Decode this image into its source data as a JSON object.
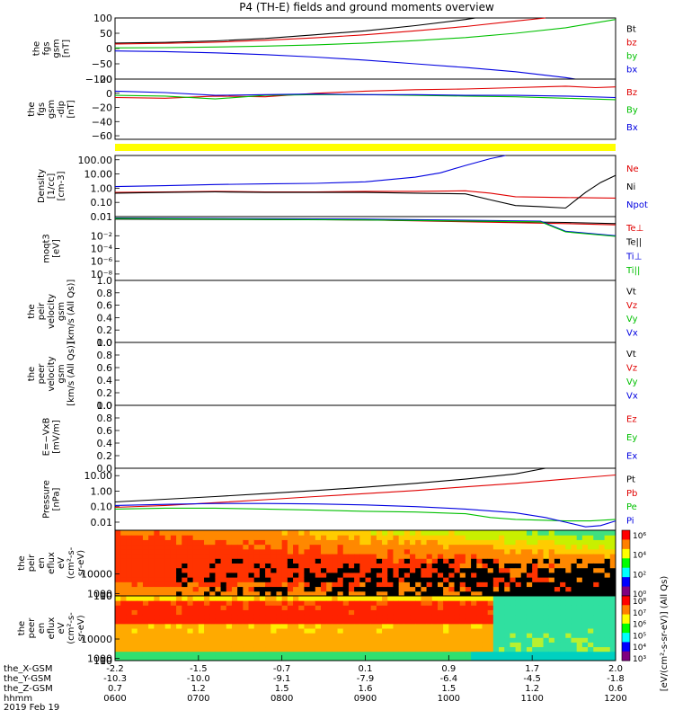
{
  "title": "P4 (TH-E) fields and ground moments overview",
  "colors": {
    "black": "#000000",
    "red": "#e00000",
    "green": "#00c000",
    "blue": "#0000e0",
    "yellow": "#ffff00"
  },
  "chart_data": [
    {
      "id": "bgsm",
      "type": "line",
      "ylabel": [
        "the",
        "fgs",
        "gsm",
        "[nT]"
      ],
      "ylim": [
        -100,
        100
      ],
      "yticks": [
        "100",
        "50",
        "0",
        "−50",
        "−100"
      ],
      "ytick_values": [
        100,
        50,
        0,
        -50,
        -100
      ],
      "legend": [
        "Bt",
        "bz",
        "by",
        "bx"
      ],
      "series": [
        {
          "name": "Bt",
          "color": "black",
          "x": [
            0.0,
            0.1,
            0.2,
            0.3,
            0.4,
            0.5,
            0.6,
            0.7,
            0.72
          ],
          "values": [
            18,
            20,
            25,
            33,
            45,
            58,
            75,
            95,
            100
          ]
        },
        {
          "name": "bz",
          "color": "red",
          "x": [
            0.0,
            0.1,
            0.2,
            0.3,
            0.4,
            0.5,
            0.6,
            0.7,
            0.8,
            0.86
          ],
          "values": [
            15,
            17,
            21,
            27,
            35,
            45,
            58,
            72,
            90,
            100
          ]
        },
        {
          "name": "by",
          "color": "green",
          "x": [
            0.0,
            0.1,
            0.2,
            0.3,
            0.4,
            0.5,
            0.6,
            0.7,
            0.8,
            0.9,
            1.0
          ],
          "values": [
            2,
            3,
            5,
            8,
            12,
            18,
            26,
            36,
            50,
            68,
            95
          ]
        },
        {
          "name": "bx",
          "color": "blue",
          "x": [
            0.0,
            0.1,
            0.2,
            0.3,
            0.4,
            0.5,
            0.6,
            0.7,
            0.8,
            0.9,
            0.92
          ],
          "values": [
            -8,
            -10,
            -14,
            -20,
            -28,
            -38,
            -50,
            -62,
            -76,
            -95,
            -100
          ]
        }
      ]
    },
    {
      "id": "bdsl",
      "type": "line",
      "ylabel": [
        "the",
        "fgs",
        "gsm",
        "-dip",
        "[nT]"
      ],
      "ylim": [
        -65,
        20
      ],
      "yticks": [
        "20",
        "0",
        "−20",
        "−40",
        "−60"
      ],
      "ytick_values": [
        20,
        0,
        -20,
        -40,
        -60
      ],
      "legend": [
        "Bz",
        "By",
        "Bx"
      ],
      "series": [
        {
          "name": "Bz",
          "color": "red",
          "x": [
            0.0,
            0.1,
            0.2,
            0.3,
            0.4,
            0.5,
            0.6,
            0.7,
            0.8,
            0.85,
            0.9,
            0.96,
            1.0
          ],
          "values": [
            -6,
            -7,
            -4,
            -5,
            0,
            3,
            5,
            6,
            8,
            9,
            10,
            8,
            9
          ]
        },
        {
          "name": "By",
          "color": "green",
          "x": [
            0.0,
            0.1,
            0.2,
            0.3,
            0.4,
            0.5,
            0.6,
            0.7,
            0.8,
            0.9,
            1.0
          ],
          "values": [
            -3,
            -4,
            -8,
            -3,
            -2,
            -2,
            -3,
            -4,
            -5,
            -7,
            -9
          ]
        },
        {
          "name": "Bx",
          "color": "blue",
          "x": [
            0.0,
            0.1,
            0.2,
            0.3,
            0.4,
            0.5,
            0.6,
            0.7,
            0.8,
            0.9,
            1.0
          ],
          "values": [
            3,
            1,
            -3,
            -2,
            -1,
            -2,
            -2,
            -3,
            -3,
            -4,
            -6
          ]
        }
      ]
    },
    {
      "id": "density",
      "type": "line",
      "scale": "log",
      "ylabel": [
        "Density",
        "[1/cc]",
        "[cm-3]"
      ],
      "ylim": [
        0.01,
        200
      ],
      "yticks": [
        "100.00",
        "10.00",
        "1.00",
        "0.10",
        "0.01"
      ],
      "ytick_values": [
        100,
        10,
        1,
        0.1,
        0.01
      ],
      "legend": [
        "Ne",
        "Ni",
        "Npot"
      ],
      "series": [
        {
          "name": "Ne",
          "color": "red",
          "x": [
            0.0,
            0.1,
            0.2,
            0.3,
            0.4,
            0.5,
            0.6,
            0.7,
            0.75,
            0.8,
            0.9,
            1.0
          ],
          "values": [
            0.5,
            0.55,
            0.6,
            0.55,
            0.55,
            0.6,
            0.6,
            0.65,
            0.45,
            0.25,
            0.22,
            0.2
          ]
        },
        {
          "name": "Ni",
          "color": "black",
          "x": [
            0.0,
            0.1,
            0.2,
            0.3,
            0.4,
            0.5,
            0.6,
            0.7,
            0.75,
            0.8,
            0.85,
            0.9,
            0.94,
            0.97,
            1.0
          ],
          "values": [
            0.45,
            0.5,
            0.55,
            0.5,
            0.5,
            0.5,
            0.45,
            0.4,
            0.15,
            0.06,
            0.05,
            0.04,
            0.5,
            2.5,
            8
          ]
        },
        {
          "name": "Npot",
          "color": "blue",
          "x": [
            0.0,
            0.1,
            0.2,
            0.3,
            0.4,
            0.5,
            0.6,
            0.65,
            0.7,
            0.75,
            0.78
          ],
          "values": [
            1.3,
            1.5,
            1.8,
            2.0,
            2.2,
            2.8,
            6,
            12,
            40,
            120,
            200
          ]
        }
      ]
    },
    {
      "id": "temp",
      "type": "line",
      "scale": "log",
      "ylabel": [
        "moqt3",
        "[eV]"
      ],
      "ylim": [
        1e-09,
        10
      ],
      "yticks": [
        "10⁻²",
        "10⁻⁴",
        "10⁻⁶",
        "10⁻⁸"
      ],
      "ytick_values": [
        0.01,
        0.0001,
        1e-06,
        1e-08
      ],
      "legend": [
        "Te⊥",
        "Te||",
        "Ti⊥",
        "Ti||"
      ],
      "series": [
        {
          "name": "Te⊥",
          "color": "red",
          "x": [
            0.0,
            0.5,
            0.9,
            1.0
          ],
          "values": [
            5,
            3,
            0.8,
            0.5
          ]
        },
        {
          "name": "Te||",
          "color": "black",
          "x": [
            0.0,
            0.5,
            0.9,
            1.0
          ],
          "values": [
            4,
            3,
            1.2,
            0.8
          ]
        },
        {
          "name": "Ti⊥",
          "color": "blue",
          "x": [
            0.0,
            0.5,
            0.85,
            0.9,
            1.0
          ],
          "values": [
            6,
            4,
            2,
            0.05,
            0.01
          ]
        },
        {
          "name": "Ti||",
          "color": "green",
          "x": [
            0.0,
            0.5,
            0.85,
            0.9,
            1.0
          ],
          "values": [
            5,
            3,
            1.5,
            0.04,
            0.008
          ]
        }
      ]
    },
    {
      "id": "vi",
      "type": "line",
      "ylabel": [
        "the",
        "peir",
        "velocity",
        "gsm",
        "[km/s (All Qs)]"
      ],
      "ylim": [
        0,
        1
      ],
      "yticks": [
        "1.0",
        "0.8",
        "0.6",
        "0.4",
        "0.2",
        "0.0"
      ],
      "ytick_values": [
        1,
        0.8,
        0.6,
        0.4,
        0.2,
        0
      ],
      "legend": [
        "Vt",
        "Vz",
        "Vy",
        "Vx"
      ],
      "series": []
    },
    {
      "id": "ve",
      "type": "line",
      "ylabel": [
        "the",
        "peer",
        "velocity",
        "gsm",
        "[km/s (All Qs)]"
      ],
      "ylim": [
        0,
        1
      ],
      "yticks": [
        "1.0",
        "0.8",
        "0.6",
        "0.4",
        "0.2",
        "0.0"
      ],
      "ytick_values": [
        1,
        0.8,
        0.6,
        0.4,
        0.2,
        0
      ],
      "legend": [
        "Vt",
        "Vz",
        "Vy",
        "Vx"
      ],
      "series": []
    },
    {
      "id": "efield",
      "type": "line",
      "ylabel": [
        "E=−VxB",
        "[mV/m]"
      ],
      "ylim": [
        0,
        1
      ],
      "yticks": [
        "1.0",
        "0.8",
        "0.6",
        "0.4",
        "0.2",
        "0.0"
      ],
      "ytick_values": [
        1,
        0.8,
        0.6,
        0.4,
        0.2,
        0
      ],
      "legend": [
        "Ez",
        "Ey",
        "Ex"
      ],
      "series": []
    },
    {
      "id": "pressure",
      "type": "line",
      "scale": "log",
      "ylabel": [
        "Pressure",
        "[nPa]"
      ],
      "ylim": [
        0.003,
        30
      ],
      "yticks": [
        "10.00",
        "1.00",
        "0.10",
        "0.01"
      ],
      "ytick_values": [
        10,
        1,
        0.1,
        0.01
      ],
      "legend": [
        "Pt",
        "Pb",
        "Pe",
        "Pi"
      ],
      "series": [
        {
          "name": "Pt",
          "color": "black",
          "x": [
            0.0,
            0.1,
            0.2,
            0.3,
            0.4,
            0.5,
            0.6,
            0.7,
            0.8,
            0.86
          ],
          "values": [
            0.2,
            0.3,
            0.45,
            0.7,
            1.1,
            1.8,
            3.2,
            6,
            13,
            30
          ]
        },
        {
          "name": "Pb",
          "color": "red",
          "x": [
            0.0,
            0.1,
            0.2,
            0.3,
            0.4,
            0.5,
            0.6,
            0.7,
            0.8,
            0.9,
            1.0
          ],
          "values": [
            0.09,
            0.12,
            0.18,
            0.28,
            0.45,
            0.7,
            1.1,
            1.9,
            3.2,
            6,
            11
          ]
        },
        {
          "name": "Pe",
          "color": "green",
          "x": [
            0.0,
            0.1,
            0.2,
            0.3,
            0.4,
            0.5,
            0.6,
            0.7,
            0.75,
            0.8,
            0.9,
            0.95,
            1.0
          ],
          "values": [
            0.07,
            0.08,
            0.08,
            0.07,
            0.06,
            0.05,
            0.045,
            0.035,
            0.02,
            0.015,
            0.012,
            0.012,
            0.015
          ]
        },
        {
          "name": "Pi",
          "color": "blue",
          "x": [
            0.0,
            0.1,
            0.2,
            0.3,
            0.4,
            0.5,
            0.6,
            0.7,
            0.8,
            0.86,
            0.9,
            0.94,
            0.97,
            1.0
          ],
          "values": [
            0.12,
            0.14,
            0.16,
            0.16,
            0.15,
            0.13,
            0.1,
            0.07,
            0.04,
            0.02,
            0.01,
            0.005,
            0.006,
            0.012
          ]
        }
      ]
    },
    {
      "id": "ion_spec",
      "type": "heatmap",
      "ylabel": [
        "the",
        "peir",
        "en",
        "eflux",
        "eV",
        "(cm²-s-",
        "sr-eV)"
      ],
      "ylim": [
        5,
        30000
      ],
      "yticks": [
        "10000",
        "1000",
        "100",
        "10"
      ],
      "ytick_values": [
        10000,
        1000,
        100,
        10
      ],
      "colorbar_ticks": [
        "10⁶",
        "10⁴",
        "10²",
        "10⁰"
      ],
      "colorbar_label": "[eV/(cm²-s-sr-eV)] (All Qs)"
    },
    {
      "id": "ele_spec",
      "type": "heatmap",
      "ylabel": [
        "the",
        "peer",
        "en",
        "eflux",
        "eV",
        "(cm²-s-",
        "sr-eV)"
      ],
      "ylim": [
        5,
        30000
      ],
      "yticks": [
        "10000",
        "1000",
        "100",
        "10"
      ],
      "ytick_values": [
        10000,
        1000,
        100,
        10
      ],
      "colorbar_ticks": [
        "10⁸",
        "10⁷",
        "10⁶",
        "10⁵",
        "10⁴",
        "10³"
      ],
      "colorbar_label": "[eV/(cm²-s-sr-eV)] (All Qs)"
    }
  ],
  "x_axis": {
    "row_labels": [
      "the_X-GSM",
      "the_Y-GSM",
      "the_Z-GSM",
      "hhmm",
      "2019 Feb 19"
    ],
    "tick_values": [
      0,
      1,
      2,
      3,
      4,
      5,
      6
    ],
    "rows": [
      [
        "-2.2",
        "-1.5",
        "-0.7",
        "0.1",
        "0.9",
        "1.7",
        "2.0"
      ],
      [
        "-10.3",
        "-10.0",
        "-9.1",
        "-7.9",
        "-6.4",
        "-4.5",
        "-1.8"
      ],
      [
        "0.7",
        "1.2",
        "1.5",
        "1.6",
        "1.5",
        "1.2",
        "0.6"
      ],
      [
        "0600",
        "0700",
        "0800",
        "0900",
        "1000",
        "1100",
        "1200"
      ]
    ]
  }
}
